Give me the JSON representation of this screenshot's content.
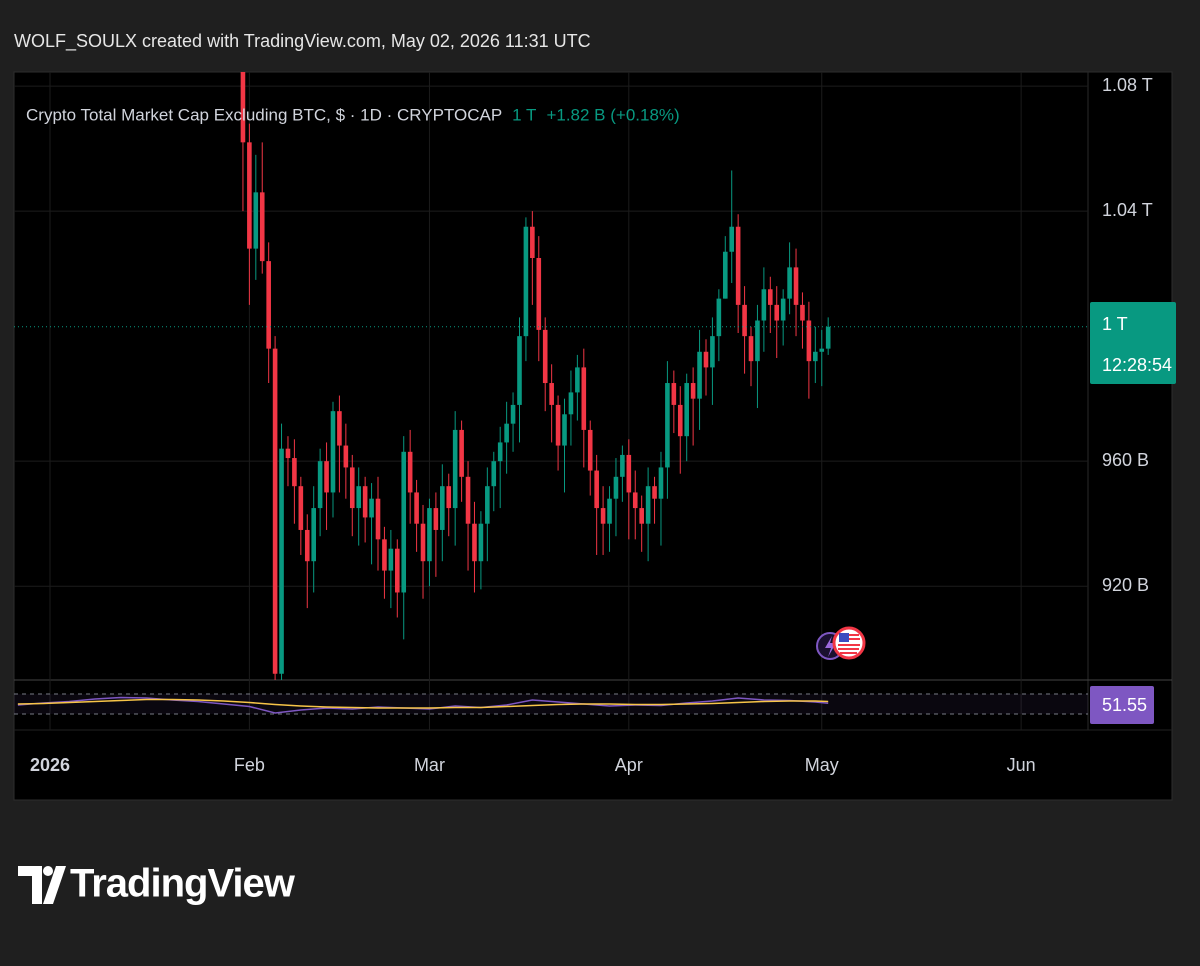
{
  "header": "WOLF_SOULX created with TradingView.com, May 02, 2026 11:31 UTC",
  "chart_data": [
    {
      "type": "candlestick",
      "title": "Crypto Total Market Cap Excluding BTC, $ · 1D · CRYPTOCAP",
      "last_price": "1 T",
      "change": "+1.82 B (+0.18%)",
      "price_label": "1 T",
      "countdown": "12:28:54",
      "up_color": "#089981",
      "down_color": "#f23645",
      "grid": true,
      "x": [
        30,
        31,
        32,
        33,
        34,
        35,
        36,
        37,
        38,
        39,
        40,
        41,
        42,
        43,
        44,
        45,
        46,
        47,
        48,
        49,
        50,
        51,
        52,
        53,
        54,
        55,
        56,
        57,
        58,
        59,
        60,
        61,
        62,
        63,
        64,
        65,
        66,
        67,
        68,
        69,
        70,
        71,
        72,
        73,
        74,
        75,
        76,
        77,
        78,
        79,
        80,
        81,
        82,
        83,
        84,
        85,
        86,
        87,
        88,
        89,
        90,
        91,
        92,
        93,
        94,
        95,
        96,
        97,
        98,
        99,
        100,
        101,
        102,
        103,
        104,
        105,
        106,
        107,
        108,
        109,
        110,
        111,
        112,
        113,
        114,
        115,
        116,
        117,
        118,
        119,
        120,
        121
      ],
      "open": [
        1090,
        1062,
        1028,
        1046,
        1024,
        996,
        892,
        964,
        961,
        952,
        938,
        928,
        945,
        960,
        950,
        976,
        965,
        958,
        945,
        952,
        942,
        948,
        935,
        925,
        932,
        918,
        963,
        950,
        940,
        928,
        945,
        938,
        952,
        945,
        970,
        955,
        940,
        928,
        940,
        952,
        960,
        966,
        972,
        978,
        1000,
        1035,
        1025,
        1002,
        985,
        978,
        965,
        975,
        982,
        990,
        970,
        957,
        945,
        940,
        948,
        955,
        962,
        950,
        945,
        940,
        952,
        948,
        958,
        985,
        978,
        968,
        985,
        980,
        995,
        990,
        1000,
        1012,
        1027,
        1035,
        1010,
        1000,
        992,
        1005,
        1015,
        1010,
        1005,
        1012,
        1022,
        1010,
        1005,
        992,
        995,
        996
      ],
      "high": [
        1096,
        1068,
        1058,
        1062,
        1030,
        1000,
        972,
        968,
        967,
        955,
        943,
        952,
        964,
        966,
        979,
        981,
        972,
        962,
        958,
        955,
        953,
        955,
        939,
        938,
        935,
        968,
        970,
        954,
        946,
        948,
        950,
        959,
        956,
        976,
        973,
        960,
        947,
        944,
        958,
        963,
        971,
        979,
        982,
        1006,
        1038,
        1040,
        1032,
        1006,
        991,
        981,
        980,
        989,
        994,
        996,
        973,
        962,
        952,
        952,
        961,
        965,
        967,
        957,
        949,
        958,
        955,
        963,
        992,
        989,
        984,
        988,
        990,
        1002,
        999,
        1006,
        1015,
        1032,
        1053,
        1039,
        1016,
        1003,
        1010,
        1022,
        1019,
        1016,
        1015,
        1030,
        1028,
        1014,
        1011,
        1003,
        1002,
        1006
      ],
      "low": [
        1040,
        1010,
        1018,
        1020,
        985,
        888,
        889,
        952,
        940,
        930,
        913,
        918,
        936,
        938,
        942,
        950,
        948,
        936,
        933,
        934,
        927,
        925,
        916,
        913,
        910,
        903,
        940,
        931,
        916,
        920,
        923,
        928,
        936,
        933,
        947,
        925,
        918,
        919,
        928,
        944,
        945,
        956,
        963,
        966,
        992,
        1010,
        992,
        976,
        966,
        957,
        950,
        965,
        973,
        958,
        949,
        930,
        930,
        931,
        936,
        947,
        935,
        935,
        931,
        928,
        940,
        933,
        948,
        969,
        956,
        960,
        965,
        970,
        981,
        978,
        992,
        1012,
        1017,
        1001,
        988,
        984,
        977,
        995,
        1001,
        993,
        997,
        1007,
        1000,
        996,
        980,
        985,
        984,
        994
      ],
      "close": [
        1062,
        1028,
        1046,
        1024,
        996,
        892,
        964,
        961,
        952,
        938,
        928,
        945,
        960,
        950,
        976,
        965,
        958,
        945,
        952,
        942,
        948,
        935,
        925,
        932,
        918,
        963,
        950,
        940,
        928,
        945,
        938,
        952,
        945,
        970,
        955,
        940,
        928,
        940,
        952,
        960,
        966,
        972,
        978,
        1000,
        1035,
        1025,
        1002,
        985,
        978,
        965,
        975,
        982,
        990,
        970,
        957,
        945,
        940,
        948,
        955,
        962,
        950,
        945,
        940,
        952,
        948,
        958,
        985,
        978,
        968,
        985,
        980,
        995,
        990,
        1000,
        1012,
        1027,
        1035,
        1010,
        1000,
        992,
        1005,
        1015,
        1010,
        1005,
        1012,
        1022,
        1010,
        1005,
        992,
        995,
        996,
        1003
      ],
      "xlim": [
        -5.6,
        161.4
      ],
      "xticks": [
        {
          "value": 0,
          "label": "2026"
        },
        {
          "value": 31,
          "label": "Feb"
        },
        {
          "value": 59,
          "label": "Mar"
        },
        {
          "value": 90,
          "label": "Apr"
        },
        {
          "value": 120,
          "label": "May"
        },
        {
          "value": 151,
          "label": "Jun"
        }
      ],
      "ylim": [
        890,
        1084.5
      ],
      "yticks": [
        {
          "value": 920,
          "label": "920 B"
        },
        {
          "value": 960,
          "label": "960 B"
        },
        {
          "value": 1040,
          "label": "1.04 T"
        },
        {
          "value": 1080,
          "label": "1.08 T"
        }
      ]
    },
    {
      "type": "line",
      "x": [
        -5,
        -1,
        3,
        7,
        11,
        15,
        19,
        23,
        27,
        31,
        35,
        39,
        43,
        47,
        51,
        55,
        59,
        63,
        67,
        71,
        75,
        79,
        83,
        87,
        91,
        95,
        99,
        103,
        107,
        111,
        115,
        119,
        121
      ],
      "series": [
        {
          "color": "#7e57c2",
          "values": [
            48,
            52,
            55,
            60,
            63,
            62,
            58,
            55,
            50,
            45,
            32,
            38,
            42,
            40,
            44,
            42,
            40,
            46,
            43,
            48,
            58,
            54,
            50,
            46,
            48,
            47,
            52,
            56,
            62,
            58,
            57,
            54,
            51.55
          ]
        },
        {
          "color": "#f7c548",
          "values": [
            50,
            51,
            53,
            55,
            57,
            59,
            59,
            58,
            56,
            53,
            49,
            46,
            44,
            43,
            42,
            42,
            42,
            43,
            43,
            45,
            47,
            49,
            50,
            50,
            49,
            49,
            50,
            51,
            53,
            55,
            56,
            56,
            55
          ]
        }
      ],
      "bands": [
        30,
        70
      ],
      "xlim": [
        -5.6,
        161.4
      ],
      "ylim": [
        0,
        100
      ]
    }
  ],
  "footer": "TradingView"
}
